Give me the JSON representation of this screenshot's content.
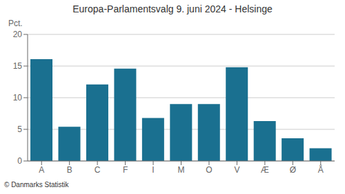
{
  "chart_data": {
    "type": "bar",
    "title": "Europa-Parlamentsvalg 9. juni 2024 - Helsinge",
    "ylabel": "Pct.",
    "annotations": [
      "© Danmarks Statistik"
    ],
    "categories": [
      "A",
      "B",
      "C",
      "F",
      "I",
      "M",
      "O",
      "V",
      "Æ",
      "Ø",
      "Å"
    ],
    "values": [
      16.1,
      5.4,
      12.1,
      14.6,
      6.8,
      9.0,
      9.0,
      14.8,
      6.3,
      3.6,
      2.0
    ],
    "color": "#1a7090",
    "ylim": [
      0,
      20
    ],
    "yticks": [
      0,
      5,
      10,
      15,
      20
    ],
    "grid": true
  }
}
